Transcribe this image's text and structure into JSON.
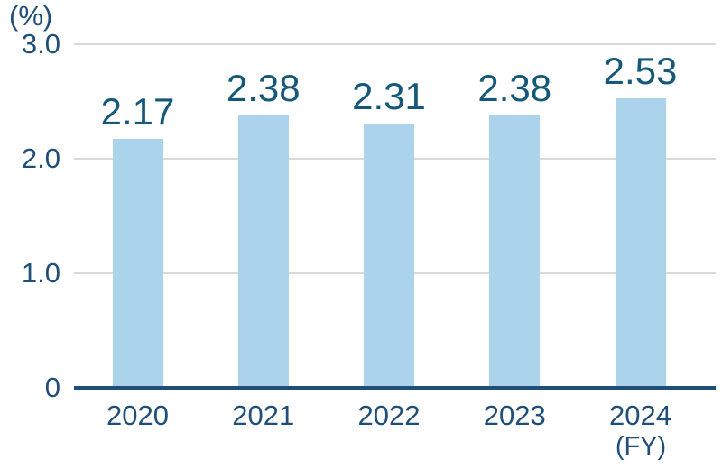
{
  "chart_data": {
    "type": "bar",
    "title": "",
    "unit_label": "(%)",
    "xlabel": "",
    "ylabel": "(%)",
    "categories": [
      "2020",
      "2021",
      "2022",
      "2023",
      "2024"
    ],
    "values": [
      2.17,
      2.38,
      2.31,
      2.38,
      2.53
    ],
    "value_labels": [
      "2.17",
      "2.38",
      "2.31",
      "2.38",
      "2.53"
    ],
    "x_axis_suffix": "(FY)",
    "y_ticks": [
      {
        "value": 0,
        "label": "0"
      },
      {
        "value": 1,
        "label": "1.0"
      },
      {
        "value": 2,
        "label": "2.0"
      },
      {
        "value": 3,
        "label": "3.0"
      }
    ],
    "ylim": [
      0,
      3.2
    ],
    "grid": true,
    "legend": "none",
    "colors": {
      "bar_fill": "#ABD3EC",
      "value_label": "#16587A",
      "axis_label": "#1F4E79",
      "axis_line": "#1F4E79",
      "gridline": "#D9D9D9",
      "background": "#FFFFFF"
    }
  }
}
